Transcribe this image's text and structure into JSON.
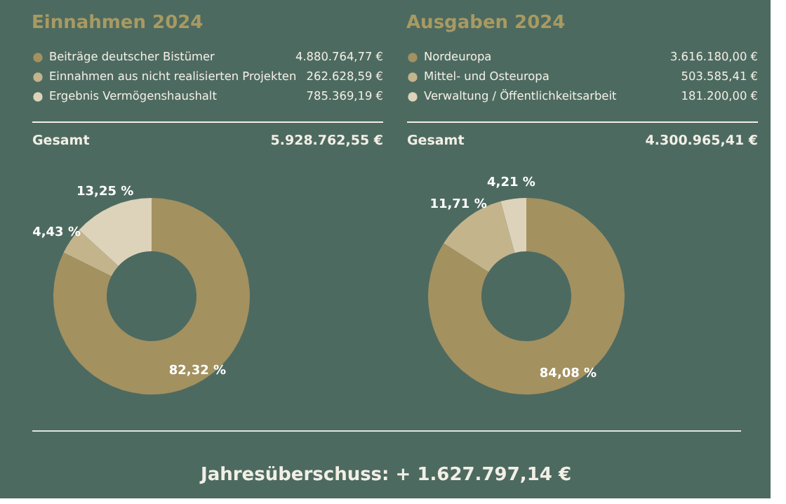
{
  "chart_data": [
    {
      "type": "donut",
      "title": "Einnahmen 2024",
      "legend": "top",
      "categories": [
        "Beiträge deutscher Bistümer",
        "Einnahmen aus nicht realisierten Projekten",
        "Ergebnis Vermögenshaushalt"
      ],
      "values": [
        82.32,
        4.43,
        13.25
      ],
      "colors": [
        "#a39160",
        "#c4b48c",
        "#ddd3ba"
      ],
      "value_labels": [
        "82,32 %",
        "4,43 %",
        "13,25 %"
      ],
      "annotations": [
        "4.880.764,77 €",
        "262.628,59 €",
        "785.369,19 €",
        "Gesamt",
        "5.928.762,55 €"
      ]
    },
    {
      "type": "donut",
      "title": "Ausgaben 2024",
      "legend": "top",
      "categories": [
        "Nordeuropa",
        "Mittel- und Osteuropa",
        "Verwaltung / Öffentlichkeitsarbeit"
      ],
      "values": [
        84.08,
        11.71,
        4.21
      ],
      "colors": [
        "#a39160",
        "#c4b48c",
        "#ddd3ba"
      ],
      "value_labels": [
        "84,08 %",
        "11,71 %",
        "4,21 %"
      ],
      "annotations": [
        "3.616.180,00 €",
        "503.585,41 €",
        "181.200,00 €",
        "Gesamt",
        "4.300.965,41 €"
      ]
    },
    {
      "type": "other",
      "annotations": [
        "Jahresüberschuss:   + 1.627.797,14 €"
      ]
    }
  ]
}
